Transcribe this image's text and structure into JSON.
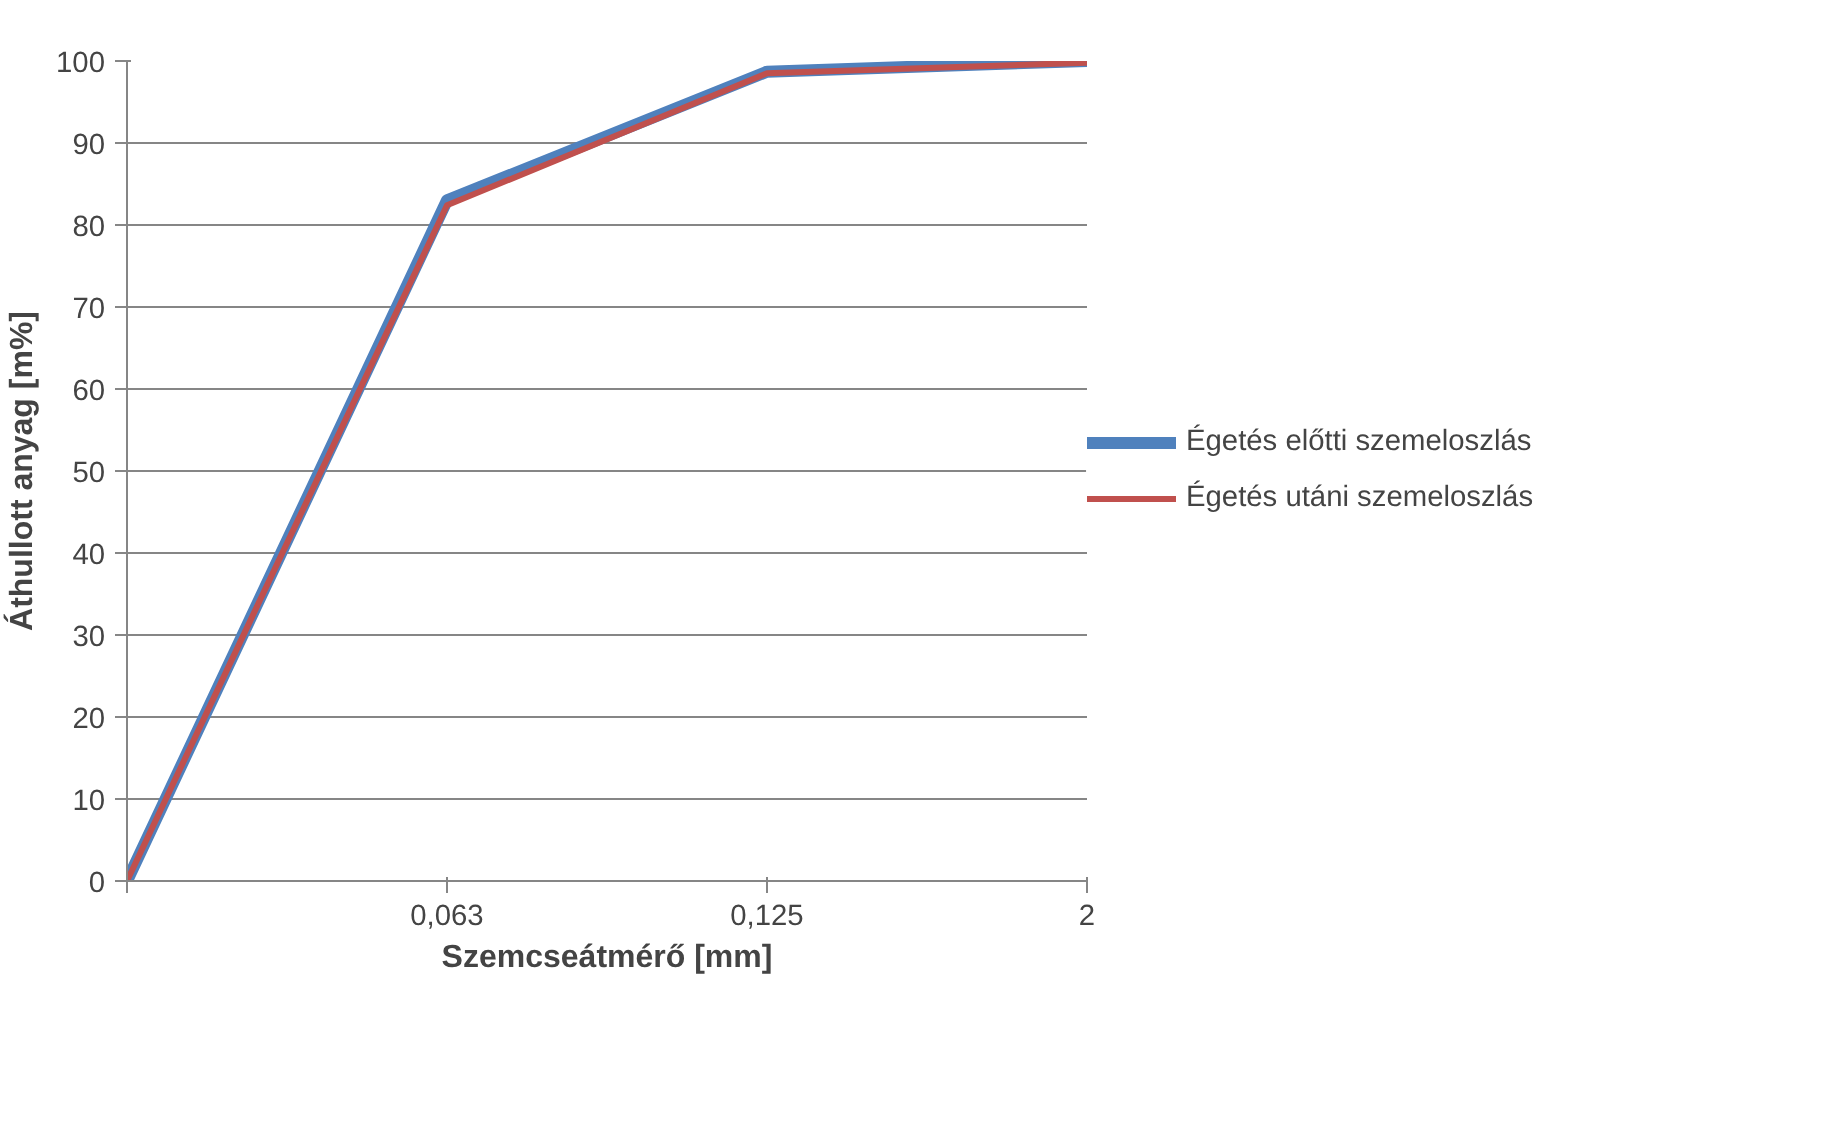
{
  "chart_data": {
    "type": "line",
    "xlabel": "Szemcseátmérő [mm]",
    "ylabel": "Áthullott anyag [m%]",
    "categories": [
      null,
      "0,063",
      "0,125",
      "2"
    ],
    "series": [
      {
        "name": "Égetés előtti szemeloszlás",
        "color": "#4f81bd",
        "values": [
          0,
          83,
          98.7,
          100
        ]
      },
      {
        "name": "Égetés utáni szemeloszlás",
        "color": "#c0504d",
        "values": [
          0,
          82.4,
          98.5,
          99.8
        ]
      }
    ],
    "ylim": [
      0,
      100
    ],
    "yticks": [
      0,
      10,
      20,
      30,
      40,
      50,
      60,
      70,
      80,
      90,
      100
    ],
    "grid": "y",
    "legend": "right",
    "marker": "none",
    "line_style": "solid"
  }
}
